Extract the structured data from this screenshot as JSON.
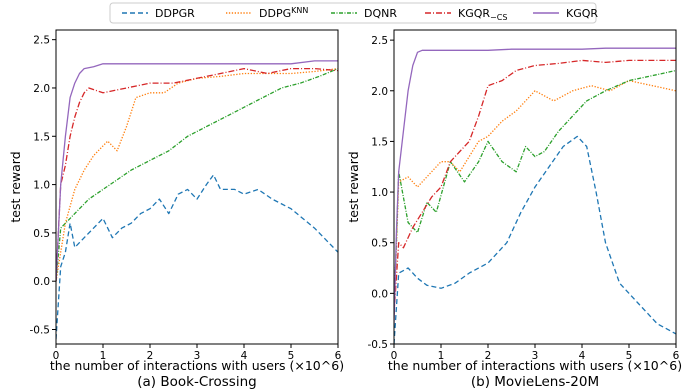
{
  "legend": [
    {
      "label": "DDPGR",
      "sup": "",
      "sub": ""
    },
    {
      "label": "DDPG",
      "sup": "KNN",
      "sub": ""
    },
    {
      "label": "DQNR",
      "sup": "",
      "sub": ""
    },
    {
      "label": "KGQR",
      "sup": "",
      "sub": "−CS"
    },
    {
      "label": "KGQR",
      "sup": "",
      "sub": ""
    }
  ],
  "series_styles": [
    {
      "color": "#1f77b4",
      "dash": "5,3"
    },
    {
      "color": "#ff7f0e",
      "dash": "1.3,1.6"
    },
    {
      "color": "#2ca02c",
      "dash": "4,1.5,1,1.5"
    },
    {
      "color": "#d62728",
      "dash": "6,2,1,2"
    },
    {
      "color": "#9467bd",
      "dash": ""
    }
  ],
  "chart_data": [
    {
      "type": "line",
      "caption": "(a) Book-Crossing",
      "xlabel": "the number of interactions with users (×10^6)",
      "ylabel": "test reward",
      "xlim": [
        0,
        6
      ],
      "ylim": [
        -0.65,
        2.6
      ],
      "xticks": [
        "0",
        "1",
        "2",
        "3",
        "4",
        "5",
        "6"
      ],
      "yticks": [
        "-0.5",
        "0.0",
        "0.5",
        "1.0",
        "1.5",
        "2.0",
        "2.5"
      ],
      "series": [
        {
          "x": [
            0,
            0.1,
            0.2,
            0.3,
            0.4,
            0.5,
            0.6,
            0.8,
            1.0,
            1.2,
            1.4,
            1.6,
            1.8,
            2.0,
            2.2,
            2.4,
            2.6,
            2.8,
            3.0,
            3.2,
            3.35,
            3.5,
            3.8,
            4.0,
            4.3,
            4.6,
            5.0,
            5.5,
            6.0
          ],
          "values": [
            -0.6,
            0.15,
            0.3,
            0.6,
            0.35,
            0.4,
            0.45,
            0.55,
            0.65,
            0.45,
            0.55,
            0.6,
            0.7,
            0.75,
            0.85,
            0.7,
            0.9,
            0.95,
            0.85,
            1.0,
            1.1,
            0.95,
            0.95,
            0.9,
            0.95,
            0.85,
            0.75,
            0.55,
            0.3
          ]
        },
        {
          "x": [
            0,
            0.2,
            0.4,
            0.6,
            0.8,
            1.0,
            1.1,
            1.3,
            1.5,
            1.7,
            2.0,
            2.3,
            2.6,
            3.0,
            3.5,
            4.0,
            4.5,
            5.0,
            5.5,
            6.0
          ],
          "values": [
            0.0,
            0.6,
            0.95,
            1.15,
            1.3,
            1.4,
            1.45,
            1.35,
            1.6,
            1.9,
            1.95,
            1.95,
            2.05,
            2.1,
            2.12,
            2.15,
            2.15,
            2.15,
            2.17,
            2.2
          ]
        },
        {
          "x": [
            0,
            0.1,
            0.3,
            0.5,
            0.7,
            1.0,
            1.3,
            1.6,
            2.0,
            2.4,
            2.8,
            3.2,
            3.6,
            4.0,
            4.4,
            4.8,
            5.2,
            5.6,
            6.0
          ],
          "values": [
            0.0,
            0.55,
            0.65,
            0.75,
            0.85,
            0.95,
            1.05,
            1.15,
            1.25,
            1.35,
            1.5,
            1.6,
            1.7,
            1.8,
            1.9,
            2.0,
            2.05,
            2.12,
            2.2
          ]
        },
        {
          "x": [
            0,
            0.1,
            0.2,
            0.3,
            0.4,
            0.5,
            0.6,
            0.7,
            1.0,
            1.5,
            2.0,
            2.5,
            3.0,
            3.5,
            4.0,
            4.5,
            5.0,
            5.5,
            6.0
          ],
          "values": [
            0.0,
            1.0,
            1.2,
            1.5,
            1.7,
            1.85,
            1.95,
            2.0,
            1.95,
            2.0,
            2.05,
            2.05,
            2.1,
            2.15,
            2.2,
            2.15,
            2.2,
            2.2,
            2.18
          ]
        },
        {
          "x": [
            0,
            0.1,
            0.2,
            0.3,
            0.4,
            0.5,
            0.6,
            0.8,
            1.0,
            1.5,
            2.0,
            2.5,
            3.0,
            3.5,
            4.0,
            4.5,
            5.0,
            5.5,
            6.0
          ],
          "values": [
            0.0,
            1.0,
            1.5,
            1.9,
            2.05,
            2.15,
            2.2,
            2.22,
            2.25,
            2.25,
            2.25,
            2.25,
            2.25,
            2.25,
            2.25,
            2.25,
            2.25,
            2.28,
            2.28
          ]
        }
      ]
    },
    {
      "type": "line",
      "caption": "(b) MovieLens-20M",
      "xlabel": "the number of interactions with users (×10^6)",
      "ylabel": "test reward",
      "xlim": [
        0,
        6
      ],
      "ylim": [
        -0.5,
        2.6
      ],
      "xticks": [
        "0",
        "1",
        "2",
        "3",
        "4",
        "5",
        "6"
      ],
      "yticks": [
        "-0.5",
        "0.0",
        "0.5",
        "1.0",
        "1.5",
        "2.0",
        "2.5"
      ],
      "series": [
        {
          "x": [
            0,
            0.1,
            0.3,
            0.5,
            0.7,
            1.0,
            1.3,
            1.6,
            2.0,
            2.4,
            2.7,
            3.0,
            3.3,
            3.6,
            3.9,
            4.1,
            4.3,
            4.5,
            4.8,
            5.2,
            5.6,
            6.0
          ],
          "values": [
            -0.5,
            0.2,
            0.25,
            0.15,
            0.08,
            0.05,
            0.1,
            0.2,
            0.3,
            0.5,
            0.8,
            1.05,
            1.25,
            1.45,
            1.55,
            1.45,
            1.0,
            0.5,
            0.1,
            -0.1,
            -0.3,
            -0.4
          ]
        },
        {
          "x": [
            0,
            0.1,
            0.3,
            0.5,
            0.8,
            1.0,
            1.2,
            1.4,
            1.6,
            1.8,
            2.0,
            2.3,
            2.6,
            3.0,
            3.4,
            3.8,
            4.2,
            4.6,
            5.0,
            5.5,
            6.0
          ],
          "values": [
            -0.2,
            1.1,
            1.15,
            1.05,
            1.2,
            1.3,
            1.3,
            1.2,
            1.35,
            1.5,
            1.55,
            1.7,
            1.8,
            2.0,
            1.9,
            2.0,
            2.05,
            2.0,
            2.1,
            2.05,
            2.0
          ]
        },
        {
          "x": [
            0,
            0.1,
            0.3,
            0.5,
            0.7,
            0.9,
            1.2,
            1.5,
            1.8,
            2.0,
            2.3,
            2.6,
            2.8,
            3.0,
            3.2,
            3.5,
            3.8,
            4.1,
            4.5,
            5.0,
            5.5,
            6.0
          ],
          "values": [
            -0.2,
            1.2,
            0.7,
            0.6,
            0.9,
            0.8,
            1.3,
            1.1,
            1.3,
            1.5,
            1.3,
            1.2,
            1.45,
            1.35,
            1.4,
            1.6,
            1.75,
            1.9,
            2.0,
            2.1,
            2.15,
            2.2
          ]
        },
        {
          "x": [
            0,
            0.1,
            0.2,
            0.4,
            0.6,
            0.8,
            1.0,
            1.2,
            1.4,
            1.6,
            1.8,
            2.0,
            2.3,
            2.6,
            3.0,
            3.5,
            4.0,
            4.5,
            5.0,
            5.5,
            6.0
          ],
          "values": [
            -0.2,
            0.5,
            0.45,
            0.65,
            0.8,
            0.95,
            1.05,
            1.3,
            1.4,
            1.5,
            1.75,
            2.05,
            2.1,
            2.2,
            2.25,
            2.27,
            2.3,
            2.28,
            2.3,
            2.3,
            2.3
          ]
        },
        {
          "x": [
            0,
            0.05,
            0.1,
            0.2,
            0.3,
            0.4,
            0.5,
            0.6,
            0.8,
            1.0,
            1.5,
            2.0,
            2.5,
            3.0,
            3.5,
            4.0,
            4.5,
            5.0,
            5.5,
            6.0
          ],
          "values": [
            -0.3,
            0.6,
            1.2,
            1.6,
            2.0,
            2.25,
            2.38,
            2.4,
            2.4,
            2.4,
            2.4,
            2.4,
            2.41,
            2.41,
            2.41,
            2.41,
            2.42,
            2.42,
            2.42,
            2.42
          ]
        }
      ]
    }
  ]
}
